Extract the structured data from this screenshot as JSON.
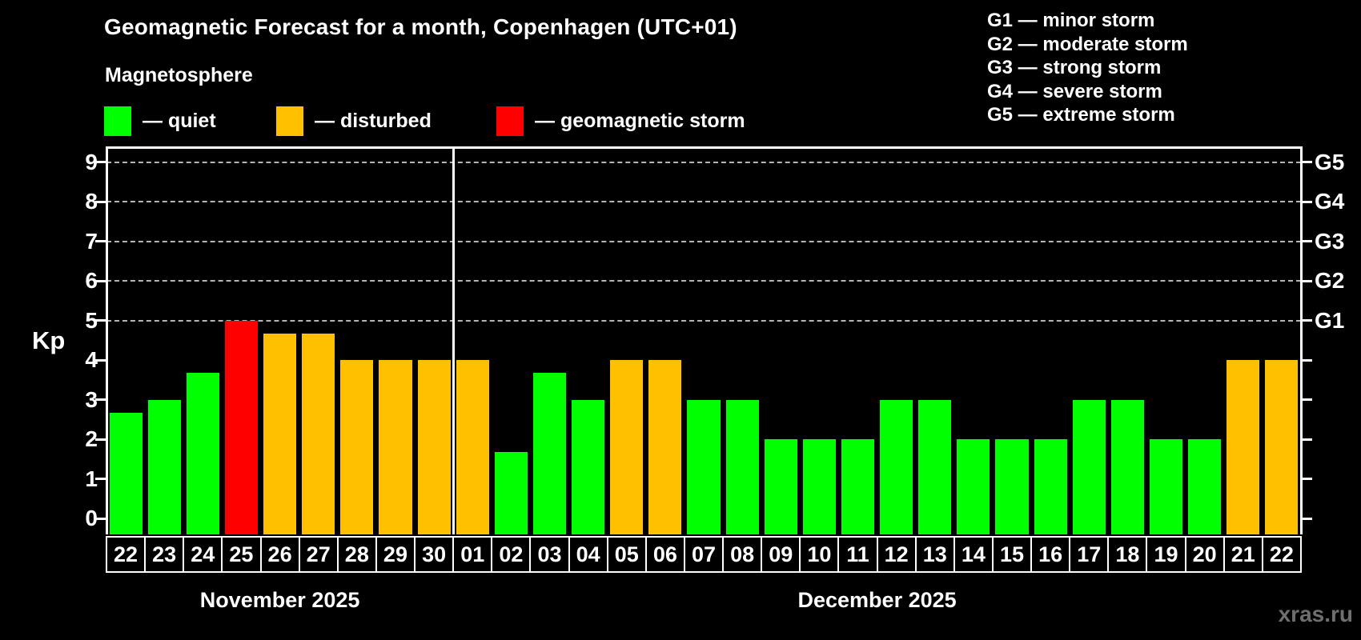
{
  "title": "Geomagnetic Forecast for a month, Copenhagen (UTC+01)",
  "subtitle": "Magnetosphere",
  "legend": {
    "items": [
      {
        "key": "quiet",
        "label": "— quiet",
        "color": "#00ff00",
        "x": 130
      },
      {
        "key": "disturbed",
        "label": "— disturbed",
        "color": "#ffc000",
        "x": 345
      },
      {
        "key": "storm",
        "label": "— geomagnetic storm",
        "color": "#ff0000",
        "x": 620
      }
    ]
  },
  "storm_scale_legend": [
    "G1 — minor storm",
    "G2 — moderate storm",
    "G3 — strong storm",
    "G4 — severe storm",
    "G5 — extreme storm"
  ],
  "kp_axis_title": "Kp",
  "watermark": "xras.ru",
  "chart_data": {
    "type": "bar",
    "title": "Geomagnetic Forecast for a month, Copenhagen (UTC+01)",
    "ylabel": "Kp",
    "ylim": [
      0,
      9.6
    ],
    "yticks": [
      0,
      1,
      2,
      3,
      4,
      5,
      6,
      7,
      8,
      9
    ],
    "gridlines_at": [
      5,
      6,
      7,
      8,
      9
    ],
    "grid": "dashed, only at storm levels G1-G5",
    "legend_position": "top",
    "right_axis_labels": [
      {
        "value": 5,
        "label": "G1"
      },
      {
        "value": 6,
        "label": "G2"
      },
      {
        "value": 7,
        "label": "G3"
      },
      {
        "value": 8,
        "label": "G4"
      },
      {
        "value": 9,
        "label": "G5"
      }
    ],
    "status_colors": {
      "quiet": "#00ff00",
      "disturbed": "#ffc000",
      "storm": "#ff0000"
    },
    "months": [
      {
        "label": "November 2025",
        "days": 9
      },
      {
        "label": "December 2025",
        "days": 22
      }
    ],
    "bars": [
      {
        "day": "22",
        "kp": 2.67,
        "status": "quiet"
      },
      {
        "day": "23",
        "kp": 3.0,
        "status": "quiet"
      },
      {
        "day": "24",
        "kp": 3.67,
        "status": "quiet"
      },
      {
        "day": "25",
        "kp": 5.0,
        "status": "storm"
      },
      {
        "day": "26",
        "kp": 4.67,
        "status": "disturbed"
      },
      {
        "day": "27",
        "kp": 4.67,
        "status": "disturbed"
      },
      {
        "day": "28",
        "kp": 4.0,
        "status": "disturbed"
      },
      {
        "day": "29",
        "kp": 4.0,
        "status": "disturbed"
      },
      {
        "day": "30",
        "kp": 4.0,
        "status": "disturbed"
      },
      {
        "day": "01",
        "kp": 4.0,
        "status": "disturbed"
      },
      {
        "day": "02",
        "kp": 1.67,
        "status": "quiet"
      },
      {
        "day": "03",
        "kp": 3.67,
        "status": "quiet"
      },
      {
        "day": "04",
        "kp": 3.0,
        "status": "quiet"
      },
      {
        "day": "05",
        "kp": 4.0,
        "status": "disturbed"
      },
      {
        "day": "06",
        "kp": 4.0,
        "status": "disturbed"
      },
      {
        "day": "07",
        "kp": 3.0,
        "status": "quiet"
      },
      {
        "day": "08",
        "kp": 3.0,
        "status": "quiet"
      },
      {
        "day": "09",
        "kp": 2.0,
        "status": "quiet"
      },
      {
        "day": "10",
        "kp": 2.0,
        "status": "quiet"
      },
      {
        "day": "11",
        "kp": 2.0,
        "status": "quiet"
      },
      {
        "day": "12",
        "kp": 3.0,
        "status": "quiet"
      },
      {
        "day": "13",
        "kp": 3.0,
        "status": "quiet"
      },
      {
        "day": "14",
        "kp": 2.0,
        "status": "quiet"
      },
      {
        "day": "15",
        "kp": 2.0,
        "status": "quiet"
      },
      {
        "day": "16",
        "kp": 2.0,
        "status": "quiet"
      },
      {
        "day": "17",
        "kp": 3.0,
        "status": "quiet"
      },
      {
        "day": "18",
        "kp": 3.0,
        "status": "quiet"
      },
      {
        "day": "19",
        "kp": 2.0,
        "status": "quiet"
      },
      {
        "day": "20",
        "kp": 2.0,
        "status": "quiet"
      },
      {
        "day": "21",
        "kp": 4.0,
        "status": "disturbed"
      },
      {
        "day": "22",
        "kp": 4.0,
        "status": "disturbed"
      }
    ]
  }
}
